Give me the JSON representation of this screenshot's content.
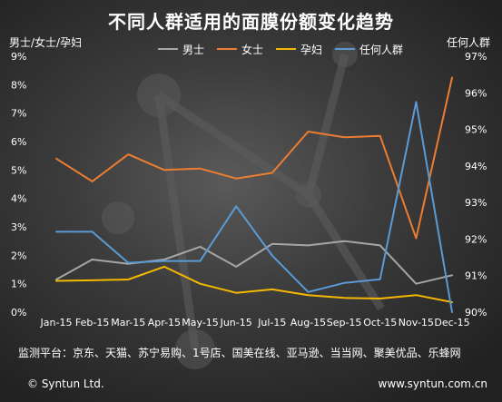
{
  "chart_data": {
    "type": "line",
    "title": "不同人群适用的面膜份额变化趋势",
    "ylabel_left": "男士/女士/孕妇",
    "ylabel_right": "任何人群",
    "categories": [
      "Jan-15",
      "Feb-15",
      "Mar-15",
      "Apr-15",
      "May-15",
      "Jun-15",
      "Jul-15",
      "Aug-15",
      "Sep-15",
      "Oct-15",
      "Nov-15",
      "Dec-15"
    ],
    "y_left": {
      "min": 0,
      "max": 9,
      "ticks": [
        "0%",
        "1%",
        "2%",
        "3%",
        "4%",
        "5%",
        "6%",
        "7%",
        "8%",
        "9%"
      ]
    },
    "y_right": {
      "min": 90,
      "max": 97,
      "ticks": [
        "90%",
        "91%",
        "92%",
        "93%",
        "94%",
        "95%",
        "96%",
        "97%"
      ]
    },
    "series": [
      {
        "name": "男士",
        "color": "#a6a6a6",
        "axis": "left",
        "values": [
          1.15,
          1.85,
          1.7,
          1.85,
          2.3,
          1.6,
          2.4,
          2.35,
          2.5,
          2.35,
          1.0,
          1.3
        ]
      },
      {
        "name": "女士",
        "color": "#ed7d31",
        "axis": "left",
        "values": [
          5.4,
          4.6,
          5.55,
          5.0,
          5.05,
          4.7,
          4.9,
          6.35,
          6.15,
          6.2,
          2.6,
          8.25
        ]
      },
      {
        "name": "孕妇",
        "color": "#f5b800",
        "axis": "left",
        "values": [
          1.1,
          1.12,
          1.15,
          1.6,
          1.0,
          0.68,
          0.8,
          0.6,
          0.5,
          0.48,
          0.6,
          0.35
        ]
      },
      {
        "name": "任何人群",
        "color": "#5b9bd5",
        "axis": "right",
        "values": [
          92.2,
          92.2,
          91.35,
          91.4,
          91.4,
          92.9,
          91.55,
          90.55,
          90.8,
          90.9,
          95.75,
          90.0
        ]
      }
    ],
    "grid": false,
    "legend_position": "top"
  },
  "footer": {
    "sources": "监测平台：京东、天猫、苏宁易购、1号店、国美在线、亚马逊、当当网、聚美优品、乐蜂网",
    "copyright": "© Syntun Ltd.",
    "website": "www.syntun.com.cn"
  }
}
